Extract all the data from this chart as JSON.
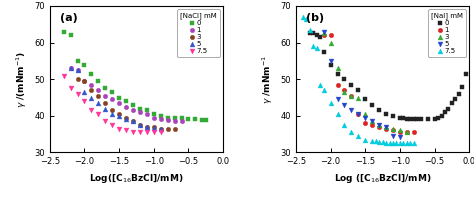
{
  "panel_a": {
    "title": "(a)",
    "legend_title": "[NaCl] mM",
    "xlabel": "Log([C$_{16}$BzCl]/mM)",
    "ylabel": "$\\gamma$ /(mNm$^{-1}$)",
    "xlim": [
      -2.5,
      0.0
    ],
    "ylim": [
      30,
      70
    ],
    "yticks": [
      30,
      40,
      50,
      60,
      70
    ],
    "xticks": [
      -2.5,
      -2.0,
      -1.5,
      -1.0,
      -0.5,
      0.0
    ],
    "series": [
      {
        "label": "0",
        "color": "#33aa33",
        "marker": "s",
        "mfc": "#33aa33",
        "x": [
          -2.3,
          -2.2,
          -2.1,
          -2.0,
          -1.9,
          -1.8,
          -1.7,
          -1.6,
          -1.5,
          -1.4,
          -1.3,
          -1.2,
          -1.1,
          -1.0,
          -0.9,
          -0.8,
          -0.7,
          -0.6,
          -0.5,
          -0.4,
          -0.3,
          -0.25
        ],
        "y": [
          63.0,
          62.0,
          55.0,
          54.0,
          51.5,
          49.5,
          47.5,
          46.5,
          45.0,
          44.0,
          43.0,
          42.0,
          41.5,
          40.5,
          40.0,
          39.5,
          39.5,
          39.3,
          39.0,
          39.0,
          38.8,
          38.8
        ]
      },
      {
        "label": "1",
        "color": "#aa44bb",
        "marker": "o",
        "mfc": "#aa44bb",
        "x": [
          -2.2,
          -2.1,
          -2.0,
          -1.9,
          -1.8,
          -1.7,
          -1.6,
          -1.5,
          -1.4,
          -1.3,
          -1.2,
          -1.1,
          -1.0,
          -0.9,
          -0.8,
          -0.7,
          -0.6
        ],
        "y": [
          53.0,
          52.5,
          49.5,
          48.5,
          47.0,
          45.5,
          44.5,
          43.5,
          42.5,
          41.5,
          41.0,
          40.5,
          39.5,
          39.0,
          38.8,
          38.5,
          38.5
        ]
      },
      {
        "label": "3",
        "color": "#884422",
        "marker": "o",
        "mfc": "#884422",
        "x": [
          -2.1,
          -2.0,
          -1.9,
          -1.8,
          -1.7,
          -1.6,
          -1.5,
          -1.4,
          -1.3,
          -1.2,
          -1.1,
          -1.0,
          -0.9,
          -0.8,
          -0.7
        ],
        "y": [
          50.0,
          49.5,
          47.0,
          45.5,
          43.5,
          41.5,
          40.5,
          39.5,
          38.5,
          37.5,
          37.0,
          37.0,
          36.5,
          36.5,
          36.5
        ]
      },
      {
        "label": "5",
        "color": "#3355cc",
        "marker": "^",
        "mfc": "#3355cc",
        "x": [
          -2.2,
          -2.1,
          -2.0,
          -1.9,
          -1.8,
          -1.7,
          -1.6,
          -1.5,
          -1.4,
          -1.3,
          -1.2,
          -1.1,
          -1.0,
          -0.9
        ],
        "y": [
          53.0,
          52.5,
          46.5,
          45.0,
          43.5,
          42.0,
          40.5,
          40.0,
          39.0,
          38.5,
          37.5,
          37.0,
          36.8,
          36.5
        ]
      },
      {
        "label": "7.5",
        "color": "#ff3399",
        "marker": "v",
        "mfc": "#ff3399",
        "x": [
          -2.3,
          -2.2,
          -2.1,
          -2.0,
          -1.9,
          -1.8,
          -1.7,
          -1.6,
          -1.5,
          -1.4,
          -1.3,
          -1.2,
          -1.1,
          -1.0,
          -0.9
        ],
        "y": [
          51.0,
          47.5,
          46.0,
          44.0,
          41.5,
          40.5,
          38.5,
          37.5,
          36.5,
          36.0,
          35.5,
          35.5,
          35.5,
          35.5,
          35.5
        ]
      }
    ]
  },
  "panel_b": {
    "title": "(b)",
    "legend_title": "[NaI] mM",
    "xlabel": "Log ([C$_{16}$BzCl]/mM)",
    "ylabel": "$\\gamma$ /mNm$^{-1}$",
    "xlim": [
      -2.5,
      0.0
    ],
    "ylim": [
      30,
      70
    ],
    "yticks": [
      30,
      40,
      50,
      60,
      70
    ],
    "xticks": [
      -2.5,
      -2.0,
      -1.5,
      -1.0,
      -0.5,
      0.0
    ],
    "series": [
      {
        "label": "0",
        "color": "#222222",
        "marker": "s",
        "mfc": "#222222",
        "x": [
          -0.7,
          -0.6,
          -0.5,
          -0.45,
          -0.4,
          -0.35,
          -0.3,
          -0.25,
          -0.2,
          -0.15,
          -0.1,
          -0.05,
          -0.75,
          -0.8,
          -0.85,
          -0.9,
          -0.95,
          -1.0,
          -1.1,
          -1.2,
          -1.3,
          -1.4,
          -1.5,
          -1.6,
          -1.7,
          -1.8,
          -1.9,
          -2.0,
          -2.1,
          -2.15,
          -2.2,
          -2.25,
          -2.3
        ],
        "y": [
          39.0,
          39.0,
          39.2,
          39.5,
          40.0,
          41.0,
          42.0,
          43.5,
          44.5,
          46.0,
          48.0,
          51.5,
          39.0,
          39.0,
          39.0,
          39.2,
          39.3,
          39.5,
          40.0,
          40.5,
          41.5,
          43.0,
          44.5,
          47.0,
          48.5,
          50.0,
          51.5,
          54.0,
          57.5,
          61.5,
          62.0,
          62.5,
          62.5
        ]
      },
      {
        "label": "1",
        "color": "#dd2222",
        "marker": "o",
        "mfc": "#dd2222",
        "x": [
          -2.1,
          -2.0,
          -1.9,
          -1.8,
          -1.7,
          -1.6,
          -1.5,
          -1.4,
          -1.3,
          -1.2,
          -1.1,
          -1.0,
          -0.9,
          -0.8
        ],
        "y": [
          62.0,
          62.0,
          48.5,
          47.0,
          45.5,
          40.5,
          38.0,
          37.5,
          37.0,
          36.5,
          36.0,
          35.5,
          35.5,
          35.5
        ]
      },
      {
        "label": "3",
        "color": "#33aa33",
        "marker": "^",
        "mfc": "#33aa33",
        "x": [
          -2.1,
          -2.0,
          -1.9,
          -1.8,
          -1.7,
          -1.6,
          -1.5,
          -1.4,
          -1.3,
          -1.2,
          -1.1,
          -1.0,
          -0.9
        ],
        "y": [
          62.5,
          60.0,
          53.0,
          46.5,
          45.5,
          45.0,
          40.5,
          38.5,
          37.5,
          37.0,
          36.5,
          36.0,
          35.5
        ]
      },
      {
        "label": "5",
        "color": "#2244cc",
        "marker": "v",
        "mfc": "#2244cc",
        "x": [
          -2.1,
          -2.0,
          -1.9,
          -1.8,
          -1.7,
          -1.6,
          -1.5,
          -1.4,
          -1.3,
          -1.2,
          -1.1,
          -1.0
        ],
        "y": [
          63.0,
          55.0,
          44.5,
          43.0,
          41.5,
          40.5,
          39.5,
          38.5,
          37.5,
          37.0,
          34.5,
          34.2
        ]
      },
      {
        "label": "7.5",
        "color": "#00ccdd",
        "marker": "^",
        "mfc": "#00ccdd",
        "x": [
          -2.4,
          -2.35,
          -2.3,
          -2.25,
          -2.2,
          -2.15,
          -2.1,
          -2.0,
          -1.9,
          -1.8,
          -1.7,
          -1.6,
          -1.5,
          -1.4,
          -1.35,
          -1.3,
          -1.25,
          -1.2,
          -1.15,
          -1.1,
          -1.05,
          -1.0,
          -0.95,
          -0.9,
          -0.85,
          -0.8
        ],
        "y": [
          67.0,
          66.5,
          63.5,
          59.0,
          58.5,
          48.5,
          47.0,
          43.5,
          40.5,
          37.5,
          35.5,
          34.5,
          33.5,
          33.0,
          33.0,
          32.8,
          32.8,
          32.5,
          32.5,
          32.5,
          32.5,
          32.5,
          32.5,
          32.5,
          32.5,
          32.5
        ]
      }
    ]
  }
}
